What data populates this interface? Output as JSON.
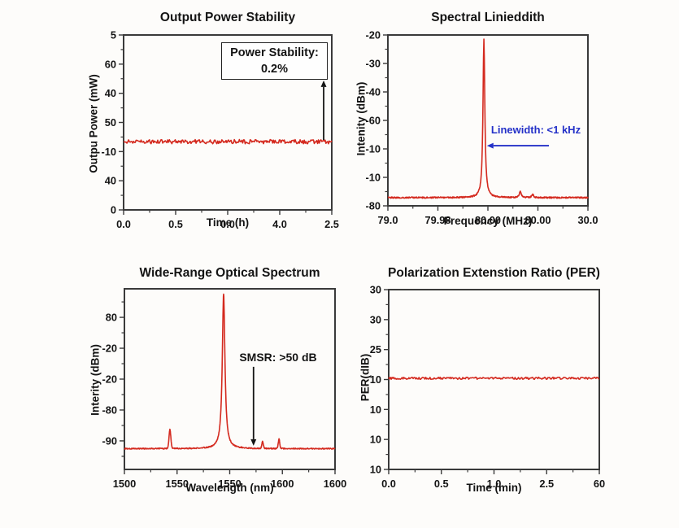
{
  "figure": {
    "background": "#fdfcfa",
    "frame_color": "#3a3a3a",
    "text_color": "#141414",
    "accent_red": "#d42a1f",
    "accent_blue": "#2431c8"
  },
  "chart_data": [
    {
      "id": "output-power-stability",
      "type": "line",
      "title": "Output Power Stability",
      "xlabel": "Time (h)",
      "ylabel": "Outpu Power (mW)",
      "x_tick_labels": [
        "0.0",
        "0.5",
        "0.0",
        "4.0",
        "2.5"
      ],
      "y_tick_labels": [
        "5",
        "60",
        "40",
        "50",
        "-10",
        "40",
        "0"
      ],
      "grid": false,
      "legend": "none",
      "series": [
        {
          "name": "output power trace",
          "shape": "flat-noisy",
          "color": "#d42a1f",
          "level_frac": 0.61,
          "noise_frac": 0.012,
          "description": "constant noisy output-power line spanning the full time axis"
        }
      ],
      "annotation_box": {
        "line1": "Power Stability:",
        "line2": "0.2%"
      },
      "arrows": [
        {
          "x1": 0.961,
          "y1": 0.6,
          "x2": 0.961,
          "y2": 0.26,
          "color": "#141414"
        }
      ]
    },
    {
      "id": "spectral-linewidth",
      "type": "line",
      "title": "Spectral Linieddith",
      "xlabel": "Frequency (MHz)",
      "ylabel": "Intenity (dBm)",
      "x_tick_labels": [
        "79.0",
        "79.98",
        "80.00",
        "80.00",
        "30.0"
      ],
      "y_tick_labels": [
        "-20",
        "-30",
        "-40",
        "-60",
        "-10",
        "-10",
        "-80"
      ],
      "grid": false,
      "legend": "none",
      "series": [
        {
          "name": "beat-note spectrum",
          "shape": "spectrum",
          "color": "#d42a1f",
          "baseline_frac": 0.952,
          "noise_frac": 0.004,
          "peaks": [
            {
              "kind": "lorentz",
              "center": 0.48,
              "apex_frac": 0.024,
              "gamma": 0.0055
            },
            {
              "kind": "lorentz",
              "center": 0.662,
              "amp": 0.035,
              "gamma": 0.006
            },
            {
              "kind": "lorentz",
              "center": 0.724,
              "amp": 0.02,
              "gamma": 0.005
            }
          ],
          "description": "single sharp peak near 80 MHz rising from ~-78 dBm baseline to ~-22 dBm"
        }
      ],
      "annotation_label": "Linewidth: <1 kHz",
      "arrows": [
        {
          "x1": 0.805,
          "y1": 0.648,
          "x2": 0.495,
          "y2": 0.648,
          "color": "#2431c8"
        }
      ]
    },
    {
      "id": "wide-range-optical-spectrum",
      "type": "line",
      "title": "Wide-Range Optical Spectrum",
      "xlabel": "Wavelength (nm)",
      "ylabel": "Interity (dBm)",
      "x_tick_labels": [
        "1500",
        "1550",
        "1550",
        "1600",
        "1600"
      ],
      "y_tick_labels": [
        "80",
        "-20",
        "-20",
        "-80",
        "-90"
      ],
      "grid": false,
      "legend": "none",
      "series": [
        {
          "name": "optical spectrum",
          "shape": "spectrum",
          "color": "#d42a1f",
          "baseline_frac": 0.885,
          "noise_frac": 0.003,
          "peaks": [
            {
              "kind": "lorentz",
              "center": 0.471,
              "apex_frac": 0.028,
              "gamma": 0.0075
            },
            {
              "kind": "gauss",
              "center": 0.216,
              "amp": 0.105,
              "width": 0.006
            },
            {
              "kind": "gauss",
              "center": 0.656,
              "amp": 0.039,
              "width": 0.005
            },
            {
              "kind": "gauss",
              "center": 0.734,
              "amp": 0.052,
              "width": 0.005
            }
          ],
          "description": "dominant lasing peak near 1550 nm with >50 dB suppressed side modes"
        }
      ],
      "annotation_label": "SMSR: >50 dB",
      "arrows": [
        {
          "x1": 0.613,
          "y1": 0.432,
          "x2": 0.613,
          "y2": 0.869,
          "color": "#141414"
        }
      ]
    },
    {
      "id": "polarization-extinction-ratio",
      "type": "line",
      "title": "Polarization Extenstion Ratio (PER)",
      "xlabel": "Time (min)",
      "ylabel": "PER(dIB)",
      "x_tick_labels": [
        "0.0",
        "0.5",
        "1.0",
        "2.5",
        "60"
      ],
      "y_tick_labels": [
        "30",
        "30",
        "25",
        "10",
        "10",
        "10",
        "10"
      ],
      "grid": false,
      "legend": "none",
      "series": [
        {
          "name": "PER trace",
          "shape": "flat-noisy",
          "color": "#d42a1f",
          "level_frac": 0.493,
          "noise_frac": 0.006,
          "description": "flat PER line at the mid-axis tick across the full time axis"
        }
      ],
      "arrows": []
    }
  ]
}
